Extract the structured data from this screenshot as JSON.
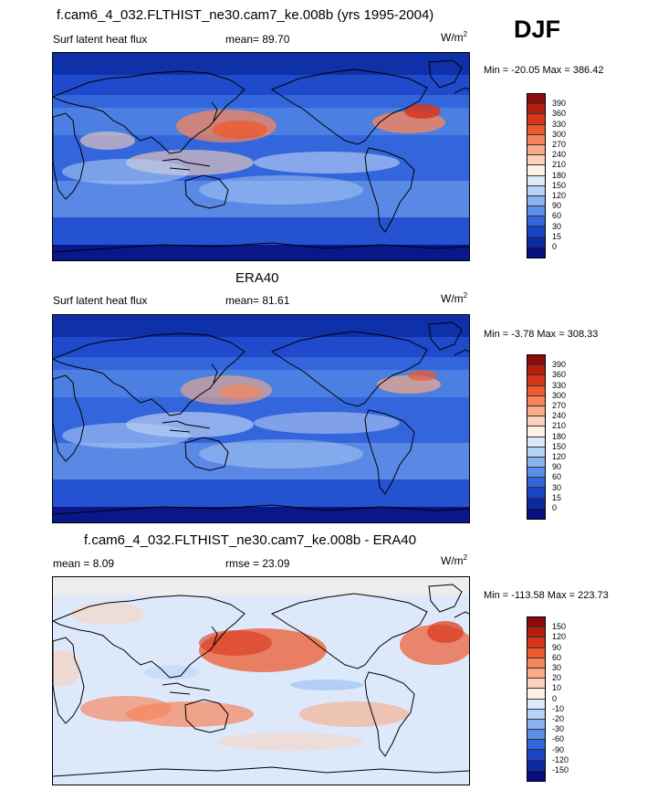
{
  "header": {
    "case_title": "f.cam6_4_032.FLTHIST_ne30.cam7_ke.008b (yrs 1995-2004)",
    "season": "DJF"
  },
  "panel1": {
    "variable": "Surf latent heat flux",
    "mean_label": "mean=  89.70",
    "units": "W/m",
    "units_exp": "2",
    "minmax": "Min = -20.05 Max = 386.42",
    "colorbar_labels": [
      "390",
      "360",
      "330",
      "300",
      "270",
      "240",
      "210",
      "180",
      "150",
      "120",
      "90",
      "60",
      "30",
      "15",
      "0"
    ],
    "colorbar_colors": [
      "#8c0c0c",
      "#b31e0e",
      "#d8361a",
      "#ee5a2f",
      "#f6845a",
      "#f9aa86",
      "#fcd1b9",
      "#fdf1e4",
      "#dde9fa",
      "#b6d2f6",
      "#89b3ef",
      "#5b8fe6",
      "#3366dc",
      "#1a44c8",
      "#0a2aa2",
      "#060e80"
    ]
  },
  "panel2": {
    "title": "ERA40",
    "variable": "Surf latent heat flux",
    "mean_label": "mean=  81.61",
    "units": "W/m",
    "units_exp": "2",
    "minmax": "Min =  -3.78 Max = 308.33",
    "colorbar_labels": [
      "390",
      "360",
      "330",
      "300",
      "270",
      "240",
      "210",
      "180",
      "150",
      "120",
      "90",
      "60",
      "30",
      "15",
      "0"
    ],
    "colorbar_colors": [
      "#8c0c0c",
      "#b31e0e",
      "#d8361a",
      "#ee5a2f",
      "#f6845a",
      "#f9aa86",
      "#fcd1b9",
      "#fdf1e4",
      "#dde9fa",
      "#b6d2f6",
      "#89b3ef",
      "#5b8fe6",
      "#3366dc",
      "#1a44c8",
      "#0a2aa2",
      "#060e80"
    ]
  },
  "panel3": {
    "title": "f.cam6_4_032.FLTHIST_ne30.cam7_ke.008b - ERA40",
    "mean_label": "mean =   8.09",
    "rmse_label": "rmse =  23.09",
    "units": "W/m",
    "units_exp": "2",
    "minmax": "Min = -113.58 Max = 223.73",
    "colorbar_labels": [
      "150",
      "120",
      "90",
      "60",
      "30",
      "20",
      "10",
      "0",
      "-10",
      "-20",
      "-30",
      "-60",
      "-90",
      "-120",
      "-150"
    ],
    "colorbar_colors": [
      "#8c0c0c",
      "#b31e0e",
      "#d8361a",
      "#ee5a2f",
      "#f6845a",
      "#f9aa86",
      "#fcd1b9",
      "#fdf1e4",
      "#dde9fa",
      "#b6d2f6",
      "#89b3ef",
      "#5b8fe6",
      "#3366dc",
      "#1a44c8",
      "#0a2aa2",
      "#060e80"
    ]
  }
}
